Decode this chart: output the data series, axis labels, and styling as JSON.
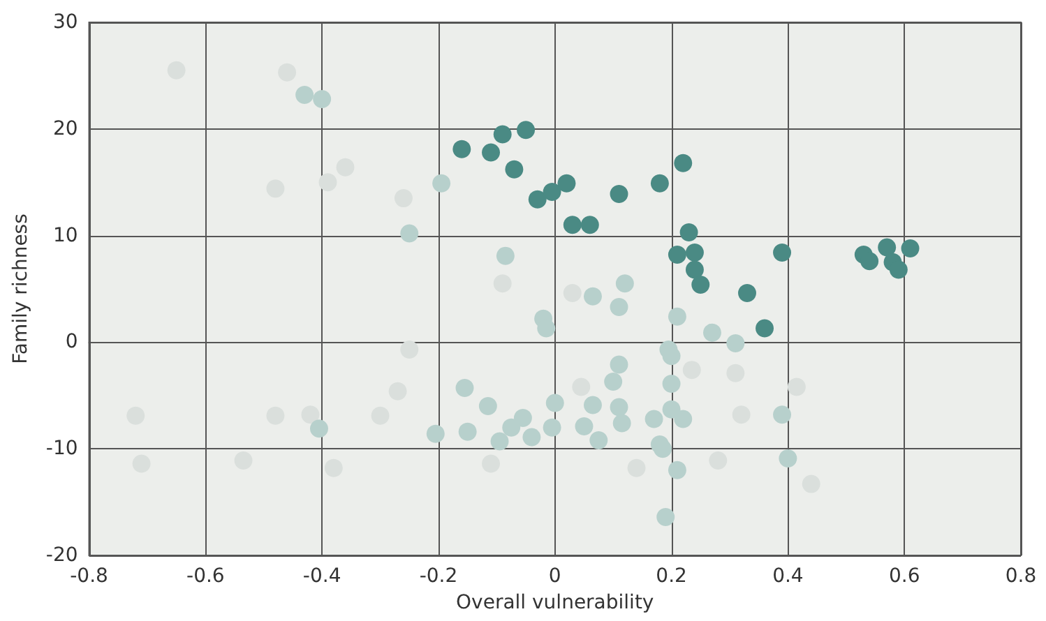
{
  "chart_data": {
    "type": "scatter",
    "xlabel": "Overall vulnerability",
    "ylabel": "Family richness",
    "xlim": [
      -0.8,
      0.8
    ],
    "xticks": [
      -0.8,
      -0.6,
      -0.4,
      -0.2,
      0,
      0.2,
      0.4,
      0.6,
      0.8
    ],
    "ylim": [
      -20,
      30
    ],
    "yticks": [
      -20,
      -10,
      0,
      10,
      20,
      30
    ],
    "grid": true,
    "marker": "circle",
    "series": [
      {
        "color": "#dadfdc",
        "x": [
          -0.65,
          -0.46,
          -0.36,
          -0.48,
          -0.39,
          -0.26,
          -0.09,
          -0.25,
          -0.27,
          -0.3,
          -0.48,
          -0.42,
          -0.72,
          -0.71,
          -0.535,
          -0.38,
          -0.11,
          0.03,
          0.045,
          0.235,
          0.31,
          0.32,
          0.415,
          0.14,
          0.28,
          0.44
        ],
        "values": [
          25.5,
          25.3,
          16.4,
          14.4,
          15,
          13.5,
          5.5,
          -0.7,
          -4.6,
          -6.9,
          -6.9,
          -6.8,
          -6.9,
          -11.4,
          -11.1,
          -11.8,
          -11.4,
          4.6,
          -4.2,
          -2.6,
          -2.9,
          -6.8,
          -4.2,
          -11.8,
          -11.1,
          -13.3
        ]
      },
      {
        "color": "#b7d0cc",
        "x": [
          -0.43,
          -0.4,
          -0.195,
          -0.25,
          -0.085,
          -0.02,
          -0.015,
          -0.155,
          -0.115,
          -0.055,
          0,
          -0.005,
          -0.075,
          -0.04,
          -0.095,
          -0.15,
          -0.205,
          -0.405,
          0.065,
          0.12,
          0.11,
          0.21,
          0.27,
          0.31,
          0.195,
          0.2,
          0.11,
          0.1,
          0.2,
          0.065,
          0.11,
          0.2,
          0.39,
          0.05,
          0.115,
          0.17,
          0.22,
          0.075,
          0.18,
          0.185,
          0.21,
          0.4,
          0.19
        ],
        "values": [
          23.2,
          22.8,
          14.9,
          10.2,
          8.1,
          2.2,
          1.3,
          -4.3,
          -6,
          -7.1,
          -5.7,
          -8,
          -8,
          -8.9,
          -9.3,
          -8.4,
          -8.6,
          -8.1,
          4.3,
          5.5,
          3.3,
          2.4,
          0.9,
          -0.1,
          -0.7,
          -1.3,
          -2.1,
          -3.7,
          -3.9,
          -5.9,
          -6.1,
          -6.3,
          -6.8,
          -7.9,
          -7.6,
          -7.2,
          -7.2,
          -9.2,
          -9.6,
          -10,
          -12,
          -10.9,
          -16.4
        ]
      },
      {
        "color": "#4a8a84",
        "x": [
          -0.16,
          -0.11,
          -0.09,
          -0.07,
          -0.05,
          -0.03,
          -0.005,
          0.02,
          0.03,
          0.06,
          0.11,
          0.18,
          0.22,
          0.21,
          0.23,
          0.24,
          0.24,
          0.25,
          0.33,
          0.36,
          0.39,
          0.53,
          0.54,
          0.57,
          0.58,
          0.59,
          0.61
        ],
        "values": [
          18.1,
          17.8,
          19.5,
          16.2,
          19.9,
          13.4,
          14.1,
          14.9,
          11,
          11,
          13.9,
          14.9,
          16.8,
          8.2,
          10.3,
          8.4,
          6.8,
          5.4,
          4.6,
          1.3,
          8.4,
          8.2,
          7.6,
          8.9,
          7.5,
          6.8,
          8.8
        ]
      }
    ]
  }
}
